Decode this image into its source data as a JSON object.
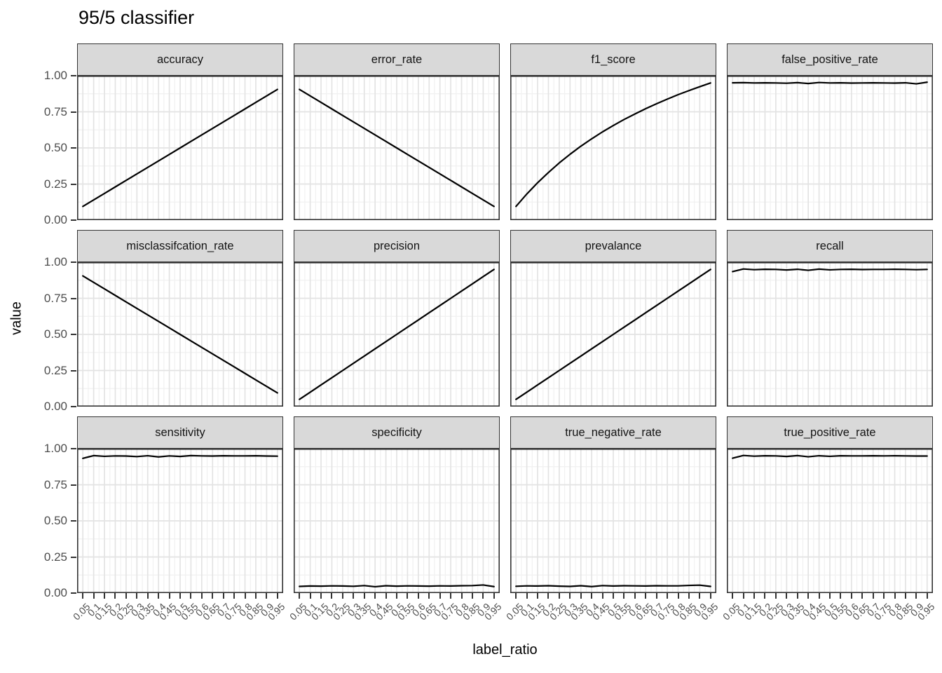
{
  "title": "95/5 classifier",
  "axes": {
    "x_label": "label_ratio",
    "y_label": "value",
    "y_tick_labels": [
      "1.00",
      "0.75",
      "0.50",
      "0.25",
      "0.00"
    ],
    "x_tick_labels": [
      "0.05",
      "0.1",
      "0.15",
      "0.2",
      "0.25",
      "0.3",
      "0.35",
      "0.4",
      "0.45",
      "0.5",
      "0.55",
      "0.6",
      "0.65",
      "0.7",
      "0.75",
      "0.8",
      "0.85",
      "0.9",
      "0.95"
    ]
  },
  "style": {
    "line_color": "#000000",
    "strip_bg": "#d9d9d9",
    "panel_border": "#333333",
    "panel_bg": "#ffffff",
    "grid_major": "#e3e3e3",
    "grid_minor": "#f1f1f1",
    "tick_color": "#333333",
    "axis_text_color": "#4d4d4d"
  },
  "chart_data": {
    "type": "line",
    "title": "95/5 classifier",
    "xlabel": "label_ratio",
    "ylabel": "value",
    "ylim": [
      0,
      1
    ],
    "grid": true,
    "legend": "none",
    "facet_layout": {
      "rows": 3,
      "cols": 4
    },
    "x": [
      0.05,
      0.1,
      0.15,
      0.2,
      0.25,
      0.3,
      0.35,
      0.4,
      0.45,
      0.5,
      0.55,
      0.6,
      0.65,
      0.7,
      0.75,
      0.8,
      0.85,
      0.9,
      0.95
    ],
    "y_ticks": [
      1.0,
      0.75,
      0.5,
      0.25,
      0.0
    ],
    "facets": [
      {
        "name": "accuracy",
        "values": [
          0.095,
          0.14,
          0.185,
          0.23,
          0.275,
          0.32,
          0.365,
          0.41,
          0.455,
          0.5,
          0.545,
          0.59,
          0.635,
          0.68,
          0.725,
          0.77,
          0.815,
          0.86,
          0.905
        ]
      },
      {
        "name": "error_rate",
        "values": [
          0.905,
          0.86,
          0.815,
          0.77,
          0.725,
          0.68,
          0.635,
          0.59,
          0.545,
          0.5,
          0.455,
          0.41,
          0.365,
          0.32,
          0.275,
          0.23,
          0.185,
          0.14,
          0.095
        ]
      },
      {
        "name": "f1_score",
        "values": [
          0.095,
          0.181,
          0.259,
          0.33,
          0.396,
          0.456,
          0.512,
          0.563,
          0.611,
          0.655,
          0.697,
          0.735,
          0.772,
          0.806,
          0.838,
          0.869,
          0.897,
          0.924,
          0.95
        ]
      },
      {
        "name": "false_positive_rate",
        "values": [
          0.951,
          0.952,
          0.95,
          0.951,
          0.95,
          0.948,
          0.952,
          0.946,
          0.953,
          0.95,
          0.951,
          0.949,
          0.95,
          0.951,
          0.95,
          0.949,
          0.951,
          0.944,
          0.955
        ]
      },
      {
        "name": "misclassifcation_rate",
        "values": [
          0.905,
          0.86,
          0.815,
          0.77,
          0.725,
          0.68,
          0.635,
          0.59,
          0.545,
          0.5,
          0.455,
          0.41,
          0.365,
          0.32,
          0.275,
          0.23,
          0.185,
          0.14,
          0.095
        ]
      },
      {
        "name": "precision",
        "values": [
          0.05,
          0.1,
          0.15,
          0.2,
          0.25,
          0.3,
          0.35,
          0.4,
          0.45,
          0.5,
          0.55,
          0.6,
          0.65,
          0.7,
          0.75,
          0.8,
          0.85,
          0.9,
          0.95
        ]
      },
      {
        "name": "prevalance",
        "values": [
          0.05,
          0.1,
          0.15,
          0.2,
          0.25,
          0.3,
          0.35,
          0.4,
          0.45,
          0.5,
          0.55,
          0.6,
          0.65,
          0.7,
          0.75,
          0.8,
          0.85,
          0.9,
          0.95
        ]
      },
      {
        "name": "recall",
        "values": [
          0.935,
          0.953,
          0.948,
          0.951,
          0.95,
          0.946,
          0.951,
          0.944,
          0.952,
          0.947,
          0.95,
          0.951,
          0.949,
          0.95,
          0.95,
          0.951,
          0.95,
          0.948,
          0.95
        ]
      },
      {
        "name": "sensitivity",
        "values": [
          0.933,
          0.952,
          0.947,
          0.95,
          0.949,
          0.945,
          0.951,
          0.943,
          0.95,
          0.946,
          0.952,
          0.95,
          0.949,
          0.951,
          0.95,
          0.95,
          0.951,
          0.949,
          0.948
        ]
      },
      {
        "name": "specificity",
        "values": [
          0.046,
          0.049,
          0.048,
          0.05,
          0.049,
          0.047,
          0.052,
          0.044,
          0.051,
          0.048,
          0.05,
          0.049,
          0.048,
          0.05,
          0.049,
          0.051,
          0.052,
          0.056,
          0.045
        ]
      },
      {
        "name": "true_negative_rate",
        "values": [
          0.047,
          0.05,
          0.049,
          0.051,
          0.048,
          0.046,
          0.051,
          0.045,
          0.052,
          0.049,
          0.051,
          0.05,
          0.049,
          0.051,
          0.05,
          0.05,
          0.053,
          0.055,
          0.046
        ]
      },
      {
        "name": "true_positive_rate",
        "values": [
          0.934,
          0.953,
          0.948,
          0.951,
          0.95,
          0.946,
          0.952,
          0.944,
          0.951,
          0.947,
          0.951,
          0.95,
          0.95,
          0.951,
          0.95,
          0.951,
          0.95,
          0.949,
          0.949
        ]
      }
    ]
  }
}
